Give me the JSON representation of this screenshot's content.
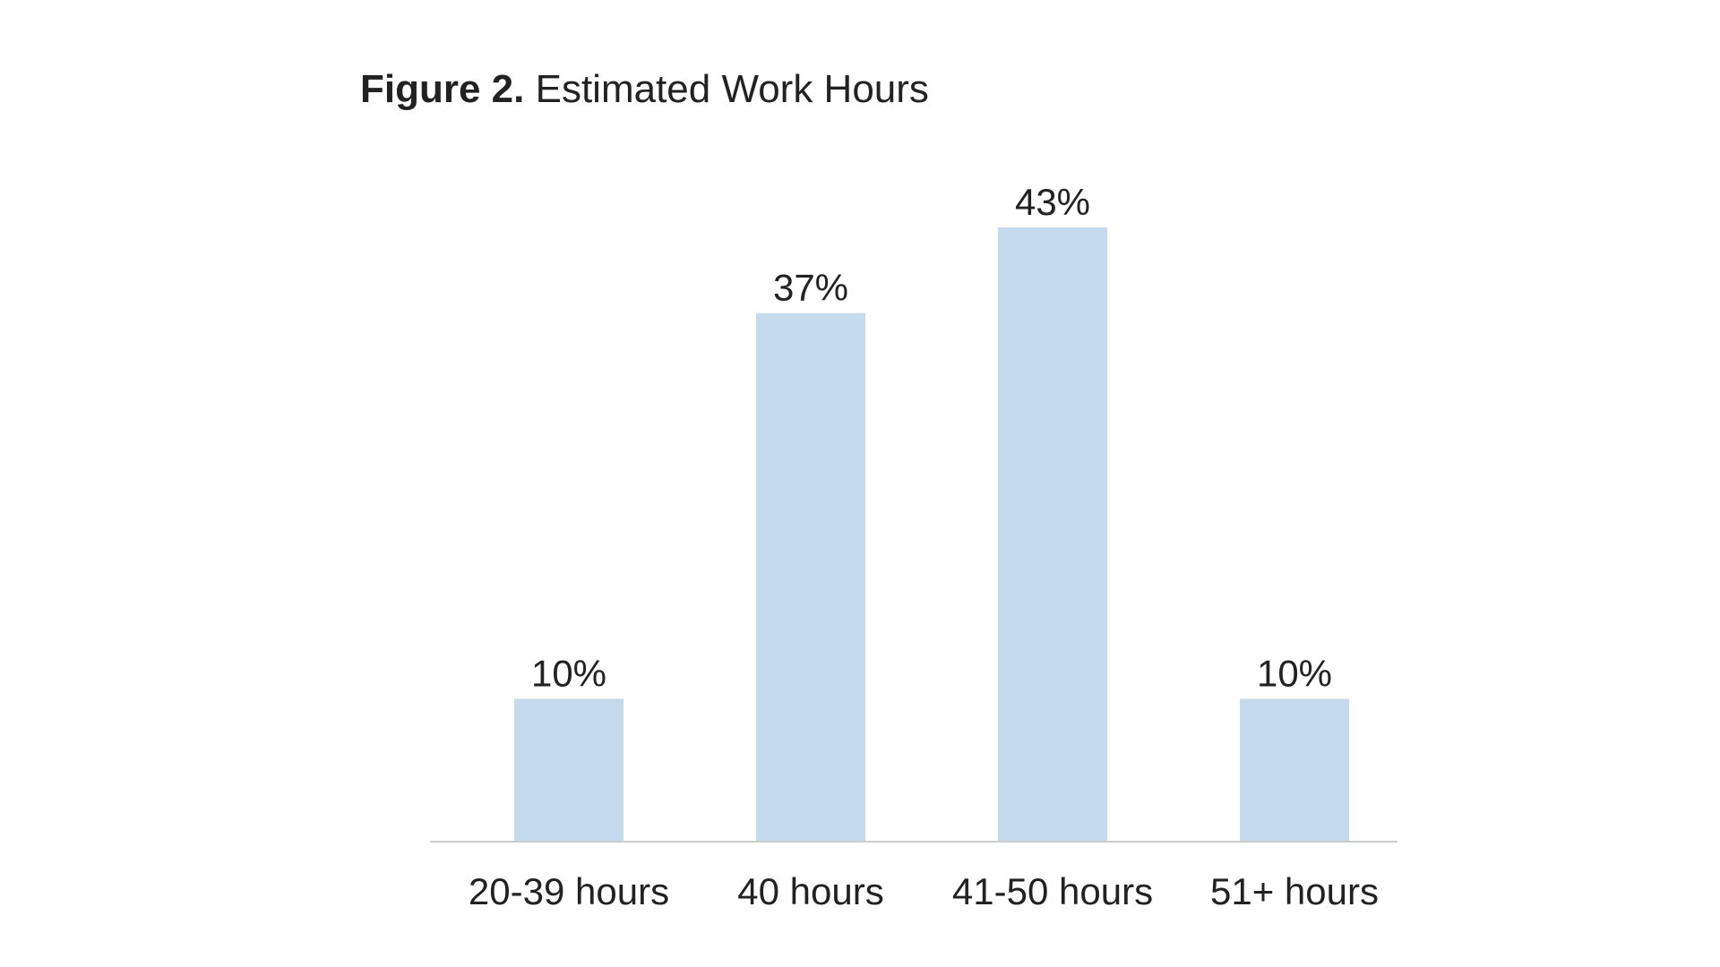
{
  "chart_data": {
    "type": "bar",
    "title_lead": "Figure 2.",
    "title": "Estimated Work Hours",
    "categories": [
      "20-39 hours",
      "40 hours",
      "41-50 hours",
      "51+ hours"
    ],
    "values": [
      10,
      37,
      43,
      10
    ],
    "value_labels": [
      "10%",
      "37%",
      "43%",
      "10%"
    ],
    "unit": "%",
    "ylim": [
      0,
      43
    ],
    "grid": false,
    "legend": "none",
    "bar_color": "#c5dbed",
    "axis_color": "#cccccc",
    "text_color": "#222222"
  }
}
